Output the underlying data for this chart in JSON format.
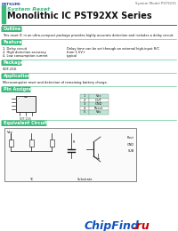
{
  "bg_color": "#ffffff",
  "green": "#3dba7e",
  "dark": "#111111",
  "gray": "#777777",
  "manufacturer": "MITSUMI",
  "system_model": "System Model PST9231",
  "subtitle": "System Reset",
  "title": "Monolithic IC PST92XX Series",
  "section_outline": "Outline",
  "outline_text": "This reset IC in an ultra-compact package provides highly accurate detection and includes a delay circuit.",
  "section_features": "Features",
  "feat1l": "1. Delay circuit",
  "feat1r": "Delay time can be set through an external high-input R/C",
  "feat2l": "2. High detection accuracy",
  "feat2r": "from 1.5V+",
  "feat3l": "4. Low consumption current",
  "feat3r": "typical",
  "section_package": "Package",
  "package_text": "SOT-216",
  "section_applications": "Applications",
  "applications_text": "Microcomputer reset and detection of remaining battery charge.",
  "section_pin": "Pin Assignment",
  "pin_table": [
    [
      "1",
      "Vcc"
    ],
    [
      "2",
      "OUT"
    ],
    [
      "3",
      "GND"
    ],
    [
      "4",
      "Reset"
    ],
    [
      "5",
      "Vss"
    ]
  ],
  "pin_highlight": [
    0,
    2,
    4
  ],
  "section_circuit": "Equivalent Circuit Diagram",
  "chipfind_text": "ChipFind",
  "chipfind_dot_ru": ".ru",
  "chipfind_color": "#1155bb",
  "ru_color": "#cc0000"
}
